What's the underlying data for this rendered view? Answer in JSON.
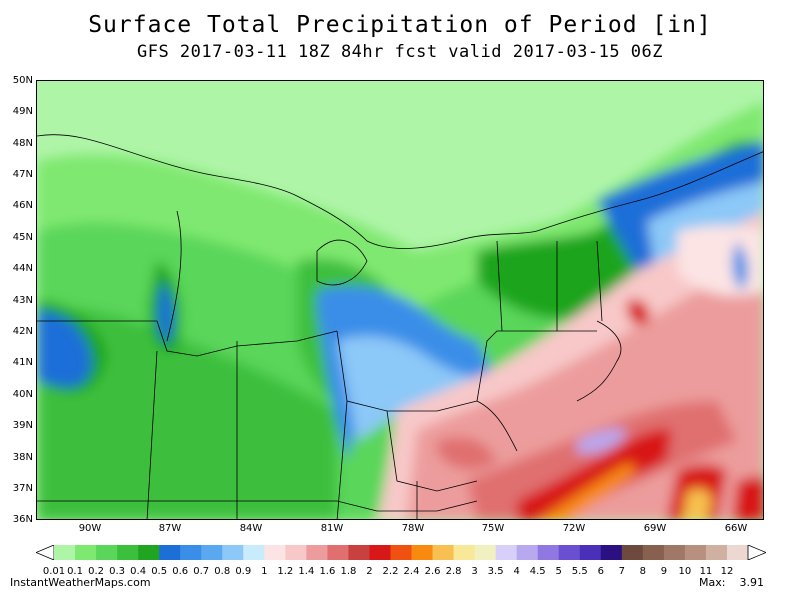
{
  "title": "Surface Total Precipitation of Period [in]",
  "subtitle": "GFS 2017-03-11 18Z 84hr fcst valid 2017-03-15 06Z",
  "map": {
    "lat_labels": [
      "50N",
      "49N",
      "48N",
      "47N",
      "46N",
      "45N",
      "44N",
      "43N",
      "42N",
      "41N",
      "40N",
      "39N",
      "38N",
      "37N",
      "36N"
    ],
    "lon_labels": [
      "90W",
      "87W",
      "84W",
      "81W",
      "78W",
      "75W",
      "72W",
      "69W",
      "66W"
    ],
    "lat_range": [
      36,
      50
    ],
    "lon_range": [
      -92,
      -65
    ],
    "region": "Great Lakes / Northeastern US"
  },
  "legend": {
    "labels": [
      "0.01",
      "0.1",
      "0.2",
      "0.3",
      "0.4",
      "0.5",
      "0.6",
      "0.7",
      "0.8",
      "0.9",
      "1",
      "1.2",
      "1.4",
      "1.6",
      "1.8",
      "2",
      "2.2",
      "2.4",
      "2.6",
      "2.8",
      "3",
      "3.5",
      "4",
      "4.5",
      "5",
      "5.5",
      "6",
      "7",
      "8",
      "9",
      "10",
      "11",
      "12"
    ],
    "colors": [
      "#aff5a8",
      "#7fe870",
      "#5ad65a",
      "#3cbf3c",
      "#1fa51f",
      "#1e6ed8",
      "#3a8ee8",
      "#5aa8f0",
      "#8cc8f8",
      "#c8ecfc",
      "#fce4e4",
      "#f8c8c8",
      "#ec9c9c",
      "#e07070",
      "#c84040",
      "#d81818",
      "#f05010",
      "#f88a10",
      "#f8c050",
      "#f8e898",
      "#f0f0c0",
      "#d8d0f8",
      "#b8a8f0",
      "#9078e0",
      "#6a50d0",
      "#4a30b8",
      "#2a1080",
      "#6e4a3e",
      "#886050",
      "#a07868",
      "#b89080",
      "#d0b0a0",
      "#ecd8d0"
    ],
    "max_label": "Max:",
    "max_value": "3.91"
  },
  "footer": "InstantWeatherMaps.com"
}
